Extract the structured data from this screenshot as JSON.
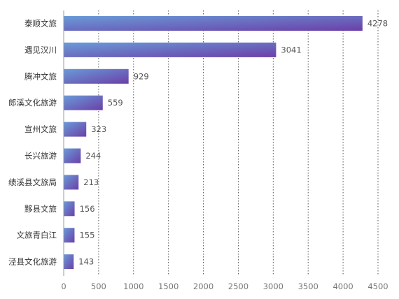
{
  "chart_data": {
    "type": "bar",
    "orientation": "horizontal",
    "categories": [
      "泰顺文旅",
      "遇见汉川",
      "腾冲文旅",
      "郎溪文化旅游",
      "宣州文旅",
      "长兴旅游",
      "绩溪县文旅局",
      "黟县文旅",
      "文旅青白江",
      "泾县文化旅游"
    ],
    "values": [
      4278,
      3041,
      929,
      559,
      323,
      244,
      213,
      156,
      155,
      143
    ],
    "xlim": [
      0,
      4500
    ],
    "xticks": [
      0,
      500,
      1000,
      1500,
      2000,
      2500,
      3000,
      3500,
      4000,
      4500
    ],
    "xtick_labels": [
      "0",
      "500",
      "1000",
      "1500",
      "2000",
      "2500",
      "3000",
      "3500",
      "4000",
      "4500"
    ],
    "grid": "vertical dotted",
    "legend": "none",
    "title": "",
    "xlabel": "",
    "ylabel": "",
    "colors": {
      "bar_gradient_start": "#6a9bd8",
      "bar_gradient_end": "#6b3fa8",
      "axis": "#999999",
      "grid": "#555555"
    }
  }
}
